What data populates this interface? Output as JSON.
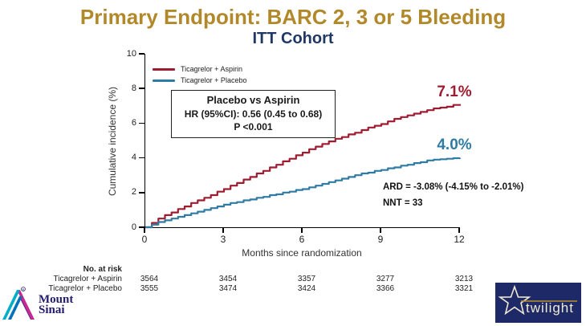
{
  "slide": {
    "title": "Primary Endpoint: BARC 2, 3 or 5 Bleeding",
    "subtitle": "ITT Cohort"
  },
  "colors": {
    "title_gold": "#B1892B",
    "subtitle_navy": "#1F3864",
    "aspirin_red": "#9E1B30",
    "placebo_blue": "#2E7BA3",
    "twilight_navy": "#1E2A67",
    "twilight_cream": "#EFE9D2",
    "twilight_gold": "#B98F2F",
    "mount_sinai_blue": "#221C6E"
  },
  "chart_data": {
    "type": "line",
    "subtype": "kaplan-meier-step",
    "title": "ITT Cohort",
    "xlabel": "Months since randomization",
    "ylabel": "Cumulative incidence (%)",
    "xlim": [
      0,
      12
    ],
    "ylim": [
      0,
      10
    ],
    "xticks": [
      0,
      3,
      6,
      9,
      12
    ],
    "yticks": [
      0,
      2,
      4,
      6,
      8,
      10
    ],
    "grid": false,
    "legend_position": "top-left",
    "x_step": 0.25,
    "series": [
      {
        "name": "Ticagrelor + Aspirin",
        "color": "#9E1B30",
        "end_label": "7.1%",
        "end_value": 7.1,
        "y": [
          0,
          0.25,
          0.5,
          0.7,
          0.85,
          1.05,
          1.2,
          1.4,
          1.55,
          1.7,
          1.85,
          2.05,
          2.2,
          2.4,
          2.55,
          2.75,
          2.9,
          3.1,
          3.25,
          3.45,
          3.6,
          3.8,
          3.95,
          4.15,
          4.3,
          4.5,
          4.65,
          4.8,
          4.95,
          5.1,
          5.2,
          5.35,
          5.45,
          5.6,
          5.75,
          5.85,
          5.95,
          6.1,
          6.25,
          6.35,
          6.45,
          6.55,
          6.65,
          6.75,
          6.85,
          6.9,
          6.95,
          7.05,
          7.1
        ]
      },
      {
        "name": "Ticagrelor + Placebo",
        "color": "#2E7BA3",
        "end_label": "4.0%",
        "end_value": 4.0,
        "y": [
          0,
          0.15,
          0.3,
          0.4,
          0.5,
          0.6,
          0.7,
          0.8,
          0.9,
          1,
          1.1,
          1.2,
          1.3,
          1.4,
          1.45,
          1.55,
          1.6,
          1.7,
          1.75,
          1.85,
          1.9,
          2,
          2.05,
          2.15,
          2.2,
          2.3,
          2.4,
          2.5,
          2.6,
          2.7,
          2.8,
          2.9,
          3,
          3.1,
          3.15,
          3.25,
          3.3,
          3.4,
          3.45,
          3.55,
          3.6,
          3.7,
          3.75,
          3.85,
          3.9,
          3.92,
          3.95,
          3.98,
          4
        ]
      }
    ],
    "stats_box": {
      "title": "Placebo vs Aspirin",
      "hr": "HR (95%CI): 0.56 (0.45 to 0.68)",
      "p": "P <0.001"
    },
    "annotations": {
      "ard": "ARD = -3.08% (-4.15% to -2.01%)",
      "nnt": "NNT = 33"
    }
  },
  "risk_table": {
    "header": "No. at risk",
    "rows": [
      {
        "label": "Ticagrelor + Aspirin",
        "values": [
          "3564",
          "3454",
          "3357",
          "3277",
          "3213"
        ]
      },
      {
        "label": "Ticagrelor + Placebo",
        "values": [
          "3555",
          "3474",
          "3424",
          "3366",
          "3321"
        ]
      }
    ]
  },
  "logos": {
    "mount_sinai_line1": "Mount",
    "mount_sinai_line2": "Sinai",
    "twilight": "twilight"
  }
}
